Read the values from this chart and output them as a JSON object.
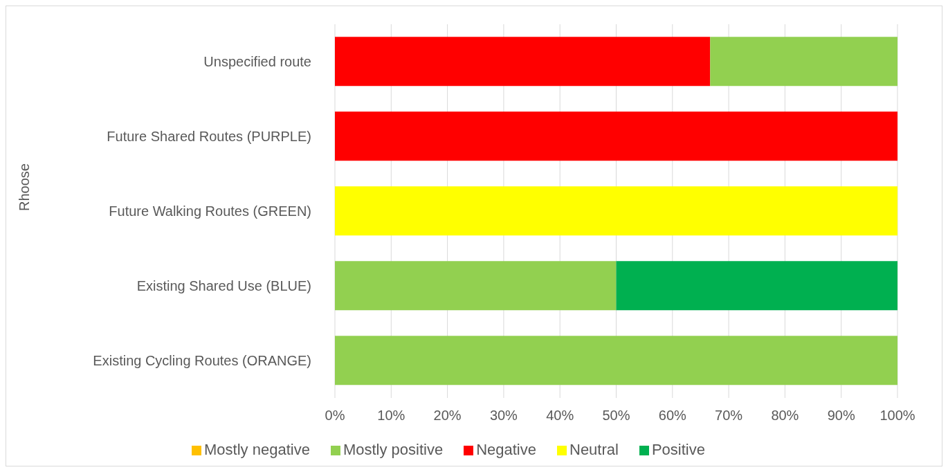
{
  "chart_data": {
    "type": "bar",
    "orientation": "horizontal",
    "stacked": true,
    "ylabel": "Rhoose",
    "categories": [
      "Unspecified route",
      "Future Shared Routes (PURPLE)",
      "Future Walking Routes (GREEN)",
      "Existing Shared Use (BLUE)",
      "Existing Cycling Routes (ORANGE)"
    ],
    "series": [
      {
        "name": "Negative",
        "color": "#ff0000",
        "values": [
          66.7,
          100,
          null,
          null,
          null
        ]
      },
      {
        "name": "Mostly negative",
        "color": "#ffc000",
        "values": [
          null,
          null,
          null,
          null,
          null
        ]
      },
      {
        "name": "Neutral",
        "color": "#ffff00",
        "values": [
          null,
          null,
          100,
          null,
          null
        ]
      },
      {
        "name": "Mostly positive",
        "color": "#92d050",
        "values": [
          33.3,
          null,
          null,
          50,
          100
        ]
      },
      {
        "name": "Positive",
        "color": "#00b050",
        "values": [
          null,
          null,
          null,
          50,
          null
        ]
      }
    ],
    "xlim": [
      0,
      100
    ],
    "xticks": [
      {
        "value": 0,
        "label": "0%"
      },
      {
        "value": 10,
        "label": "10%"
      },
      {
        "value": 20,
        "label": "20%"
      },
      {
        "value": 30,
        "label": "30%"
      },
      {
        "value": 40,
        "label": "40%"
      },
      {
        "value": 50,
        "label": "50%"
      },
      {
        "value": 60,
        "label": "60%"
      },
      {
        "value": 70,
        "label": "70%"
      },
      {
        "value": 80,
        "label": "80%"
      },
      {
        "value": 90,
        "label": "90%"
      },
      {
        "value": 100,
        "label": "100%"
      }
    ],
    "grid": "x",
    "legend": "bottom"
  }
}
